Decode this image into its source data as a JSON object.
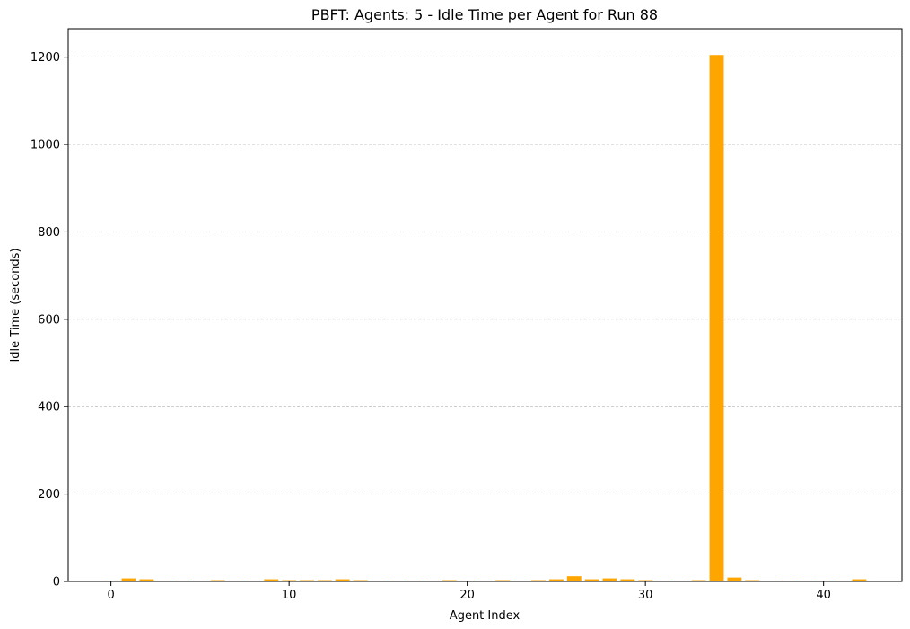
{
  "chart_data": {
    "type": "bar",
    "title": "PBFT: Agents: 5 - Idle Time per Agent for Run 88",
    "xlabel": "Agent Index",
    "ylabel": "Idle Time (seconds)",
    "xlim": [
      -2.4,
      44.4
    ],
    "ylim": [
      0,
      1265
    ],
    "xticks": [
      0,
      10,
      20,
      30,
      40
    ],
    "yticks": [
      0,
      200,
      400,
      600,
      800,
      1000,
      1200
    ],
    "grid": "y-dashed",
    "bar_color": "#ffa500",
    "x": [
      0,
      1,
      2,
      3,
      4,
      5,
      6,
      7,
      8,
      9,
      10,
      11,
      12,
      13,
      14,
      15,
      16,
      17,
      18,
      19,
      20,
      21,
      22,
      23,
      24,
      25,
      26,
      27,
      28,
      29,
      30,
      31,
      32,
      33,
      34,
      35,
      36,
      37,
      38,
      39,
      40,
      41,
      42
    ],
    "values": [
      1.5,
      7,
      5,
      2,
      2,
      2,
      3,
      2,
      2,
      5,
      3,
      3,
      3,
      5,
      3,
      2,
      2,
      2,
      2,
      3,
      2,
      2,
      3,
      2,
      3,
      5,
      12,
      5,
      7,
      5,
      3,
      2,
      2,
      3,
      1205,
      9,
      3,
      0.5,
      2,
      2,
      2,
      2,
      5
    ]
  }
}
